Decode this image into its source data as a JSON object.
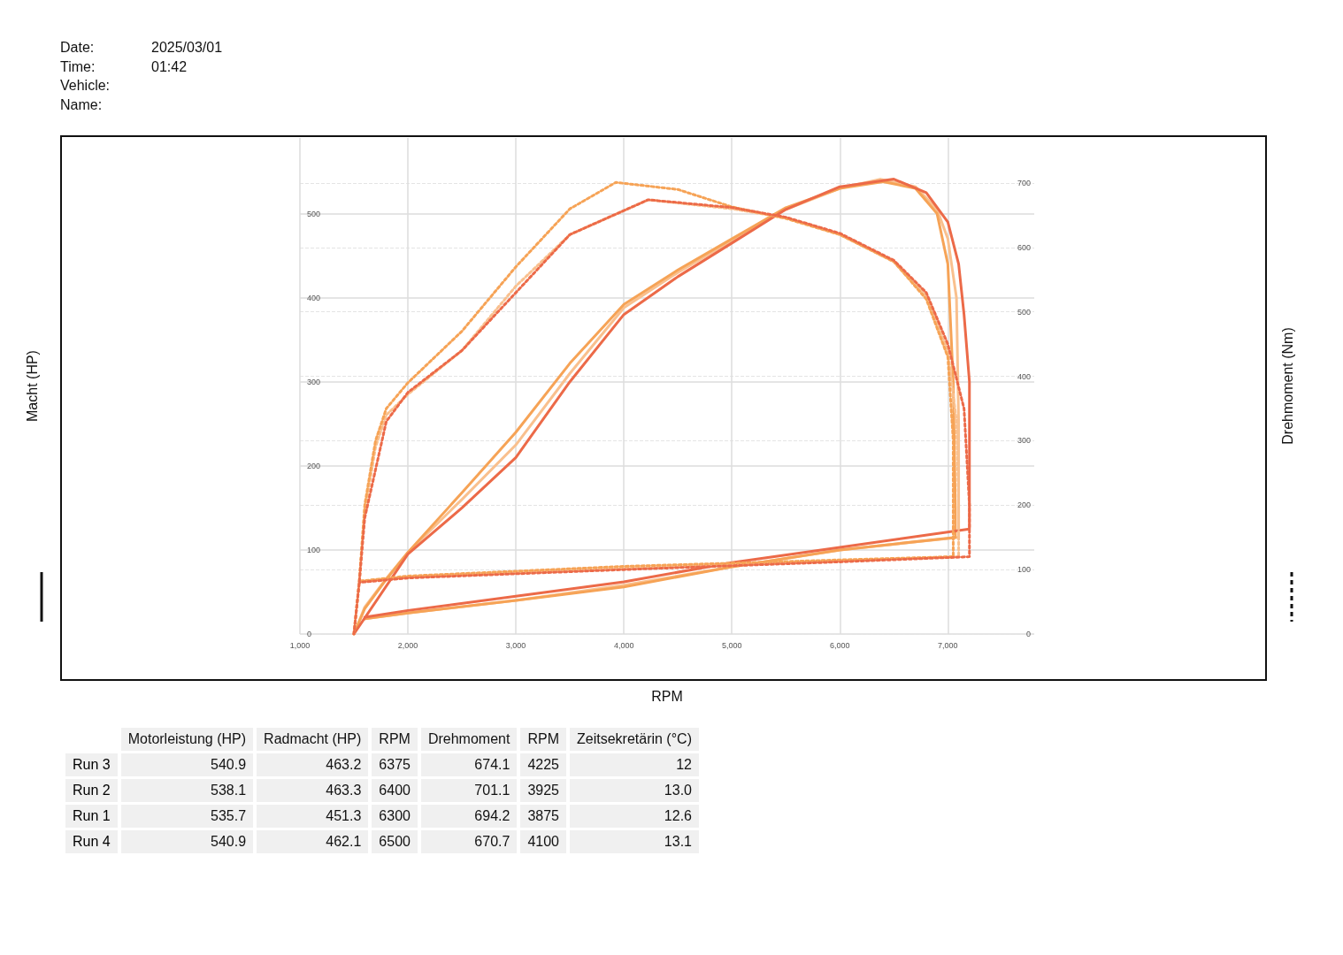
{
  "chart_data": [
    {
      "type": "line",
      "xlabel": "RPM",
      "ylabel": "Macht (HP)",
      "y2label": "Drehmoment (Nm)",
      "annotations": [
        "Date:",
        "Time:",
        "Vehicle:",
        "Name:",
        "2025/03/01",
        "01:42"
      ],
      "xlim": [
        1000,
        7800
      ],
      "ylim": [
        0,
        590
      ],
      "y2lim": [
        0,
        770
      ],
      "xticks": [
        {
          "value": 1000,
          "label": "1,000"
        },
        {
          "value": 2000,
          "label": "2,000"
        },
        {
          "value": 3000,
          "label": "3,000"
        },
        {
          "value": 4000,
          "label": "4,000"
        },
        {
          "value": 5000,
          "label": "5,000"
        },
        {
          "value": 6000,
          "label": "6,000"
        },
        {
          "value": 7000,
          "label": "7,000"
        }
      ],
      "yticks": [
        0,
        100,
        200,
        300,
        400,
        500
      ],
      "y2ticks": [
        0,
        100,
        200,
        300,
        400,
        500,
        600,
        700
      ],
      "grid": true,
      "marker": "none",
      "series": [
        {
          "color": "#f9c08e",
          "line_style": "solid",
          "x": [
            1500,
            1600,
            1800,
            2000,
            2500,
            3000,
            3500,
            4000,
            4500,
            5000,
            5500,
            6000,
            6375,
            6700,
            6900,
            7000,
            7080,
            7100,
            7100,
            6000,
            5000,
            4000,
            3000,
            2000,
            1600
          ],
          "values": [
            0,
            32,
            66,
            97,
            160,
            225,
            310,
            388,
            430,
            468,
            505,
            530,
            541,
            532,
            505,
            470,
            400,
            250,
            115,
            100,
            80,
            58,
            40,
            25,
            18
          ]
        },
        {
          "color": "#f6a356",
          "line_style": "solid",
          "x": [
            1500,
            1600,
            1800,
            2000,
            2500,
            3000,
            3500,
            4000,
            4500,
            5000,
            5500,
            6000,
            6400,
            6700,
            6900,
            7000,
            7050,
            7070,
            7070,
            6000,
            5000,
            4000,
            3000,
            2000,
            1600
          ],
          "values": [
            0,
            30,
            65,
            97,
            168,
            240,
            322,
            392,
            433,
            470,
            507,
            530,
            538,
            530,
            500,
            440,
            300,
            150,
            115,
            100,
            80,
            56,
            40,
            25,
            18
          ]
        },
        {
          "color": "#ec6a48",
          "line_style": "solid",
          "x": [
            1500,
            2000,
            2500,
            3000,
            3500,
            4000,
            4500,
            5000,
            5500,
            6000,
            6500,
            6800,
            7000,
            7100,
            7150,
            7200,
            7200,
            7200,
            6000,
            5000,
            4000,
            3000,
            2000,
            1600
          ],
          "values": [
            0,
            95,
            150,
            210,
            300,
            380,
            425,
            465,
            505,
            532,
            541,
            525,
            490,
            440,
            380,
            300,
            200,
            125,
            103,
            85,
            62,
            45,
            28,
            20
          ]
        },
        {
          "color": "#f9c08e",
          "line_style": "dotted",
          "axis": "y2",
          "x": [
            1500,
            1550,
            1600,
            1700,
            1800,
            2000,
            2500,
            3000,
            3500,
            4225,
            5000,
            5500,
            6000,
            6500,
            6800,
            7000,
            7080,
            7100,
            7100,
            6000,
            4000,
            2000,
            1550
          ],
          "values": [
            0,
            82,
            190,
            290,
            340,
            372,
            440,
            540,
            620,
            674,
            660,
            646,
            620,
            578,
            525,
            440,
            330,
            200,
            120,
            114,
            102,
            88,
            82
          ]
        },
        {
          "color": "#f6a356",
          "line_style": "dotted",
          "axis": "y2",
          "x": [
            1500,
            1550,
            1600,
            1700,
            1800,
            2000,
            2500,
            3000,
            3500,
            3925,
            4500,
            5000,
            5500,
            6000,
            6500,
            6800,
            7000,
            7050,
            7050,
            6000,
            4000,
            2000,
            1550
          ],
          "values": [
            0,
            82,
            200,
            300,
            350,
            390,
            470,
            570,
            660,
            701,
            690,
            663,
            645,
            620,
            578,
            520,
            430,
            300,
            120,
            115,
            105,
            90,
            82
          ]
        },
        {
          "color": "#ec6a48",
          "line_style": "dotted",
          "axis": "y2",
          "x": [
            1500,
            1550,
            1600,
            1800,
            2000,
            2500,
            3000,
            3500,
            4225,
            5000,
            5500,
            6000,
            6500,
            6800,
            7000,
            7150,
            7200,
            7200,
            6000,
            4000,
            2000,
            1550
          ],
          "values": [
            0,
            80,
            180,
            330,
            375,
            440,
            530,
            620,
            674,
            662,
            647,
            622,
            580,
            530,
            450,
            350,
            200,
            120,
            112,
            100,
            87,
            80
          ]
        }
      ]
    },
    {
      "type": "other",
      "categories": [
        "Motorleistung (HP)",
        "Radmacht (HP)",
        "RPM",
        "Drehmoment",
        "RPM",
        "Zeitsekretärin (°C)"
      ],
      "y_categories": [
        "Run 3",
        "Run 2",
        "Run 1",
        "Run 4"
      ],
      "cell_labels": [
        [
          "540.9",
          "463.2",
          "6375",
          "674.1",
          "4225",
          "12"
        ],
        [
          "538.1",
          "463.3",
          "6400",
          "701.1",
          "3925",
          "13.0"
        ],
        [
          "535.7",
          "451.3",
          "6300",
          "694.2",
          "3875",
          "12.6"
        ],
        [
          "540.9",
          "462.1",
          "6500",
          "670.7",
          "4100",
          "13.1"
        ]
      ]
    }
  ]
}
